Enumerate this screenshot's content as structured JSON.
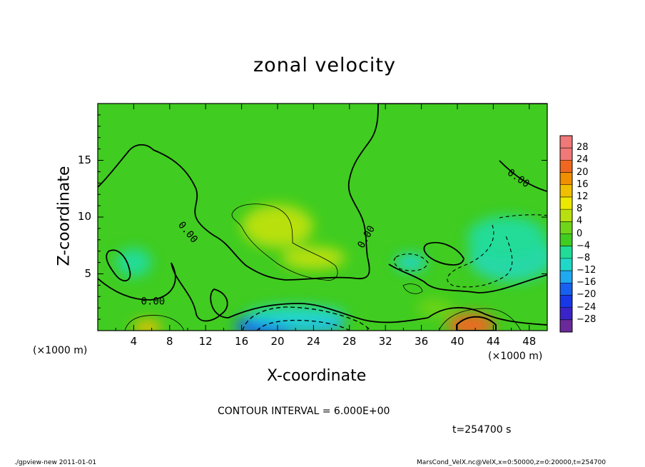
{
  "chart_data": {
    "type": "heatmap",
    "title": "zonal velocity",
    "xlabel": "X-coordinate",
    "ylabel": "Z-coordinate",
    "x_units": "(×1000 m)",
    "y_units": "(×1000 m)",
    "xlim": [
      0,
      50
    ],
    "ylim": [
      0,
      20
    ],
    "x_ticks": [
      "4",
      "8",
      "12",
      "16",
      "20",
      "24",
      "28",
      "32",
      "36",
      "40",
      "44",
      "48"
    ],
    "y_ticks": [
      "5",
      "10",
      "15"
    ],
    "colorbar_ticks": [
      "28",
      "24",
      "20",
      "16",
      "12",
      "8",
      "4",
      "0",
      "−4",
      "−8",
      "−12",
      "−16",
      "−20",
      "−24",
      "−28"
    ],
    "contour_labels": [
      "0.00",
      "0.00",
      "0.00",
      "0.00"
    ],
    "contour_interval_text": "CONTOUR INTERVAL = 6.000E+00",
    "time_text": "t=254700 s",
    "features": [
      {
        "x": 41.5,
        "z": 0.5,
        "value": 22
      },
      {
        "x": 5.5,
        "z": 0.3,
        "value": 14
      },
      {
        "x": 19,
        "z": 0.4,
        "value": -16
      },
      {
        "x": 24,
        "z": 0.6,
        "value": -13
      },
      {
        "x": 22,
        "z": 1.3,
        "value": -9
      },
      {
        "x": 20,
        "z": 9.2,
        "value": 9
      },
      {
        "x": 24,
        "z": 6.4,
        "value": 8
      },
      {
        "x": 34.8,
        "z": 6.0,
        "value": -9
      },
      {
        "x": 45.5,
        "z": 8.2,
        "value": -5
      },
      {
        "x": 37.5,
        "z": 2.0,
        "value": 4
      },
      {
        "x": 4,
        "z": 6,
        "value": -3
      }
    ]
  },
  "footer": {
    "left": "./gpview-new  2011-01-01",
    "right": "MarsCond_VelX.nc@VelX,x=0:50000,z=0:20000,t=254700"
  },
  "colors": {
    "positive_high": "#f07070",
    "positive_mid": "#f09000",
    "positive_low": "#e8e400",
    "near_zero": "#40cc20",
    "negative_low": "#20dcb0",
    "negative_mid": "#1060f0",
    "negative_high": "#7020a0"
  }
}
